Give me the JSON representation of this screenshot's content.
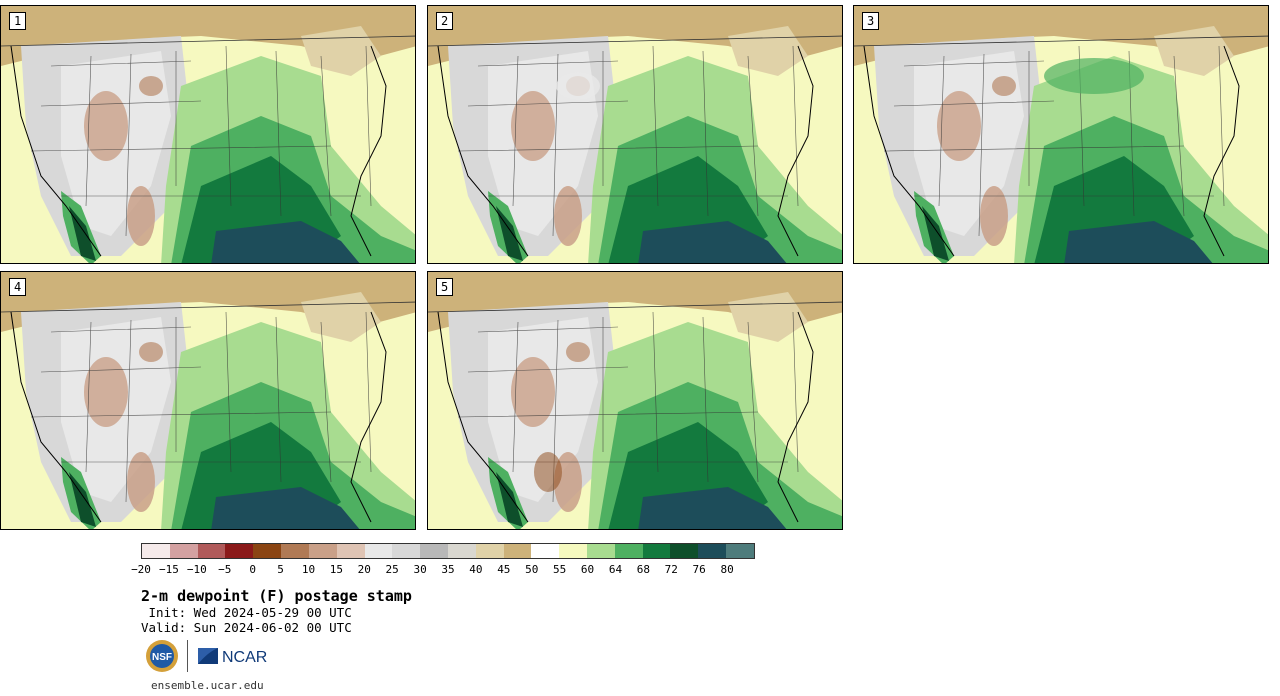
{
  "panels": [
    {
      "label": "1"
    },
    {
      "label": "2"
    },
    {
      "label": "3"
    },
    {
      "label": "4"
    },
    {
      "label": "5"
    }
  ],
  "colorbar": {
    "colors": [
      "#f5eaea",
      "#d4a1a1",
      "#b05a5a",
      "#8b1a1a",
      "#8b4513",
      "#b07a55",
      "#c9a088",
      "#dfc4b4",
      "#e8e8e8",
      "#d8d8d8",
      "#b8b8b8",
      "#d9d7d0",
      "#e0d2a8",
      "#cdb27a",
      "#ffffff",
      "#f5f9bf",
      "#a8dc90",
      "#4eb061",
      "#137a3e",
      "#0e4f2b",
      "#1d4d5a",
      "#4e7c7c"
    ],
    "tick_labels": [
      "−20",
      "−15",
      "−10",
      "−5",
      "0",
      "5",
      "10",
      "15",
      "20",
      "25",
      "30",
      "35",
      "40",
      "45",
      "50",
      "55",
      "60",
      "64",
      "68",
      "72",
      "76",
      "80"
    ]
  },
  "title": "2-m dewpoint (F) postage stamp",
  "init_line": " Init: Wed 2024-05-29 00 UTC",
  "valid_line": "Valid: Sun 2024-06-02 00 UTC",
  "logos": {
    "nsf": "NSF",
    "ncar": "NCAR"
  },
  "website": "ensemble.ucar.edu"
}
